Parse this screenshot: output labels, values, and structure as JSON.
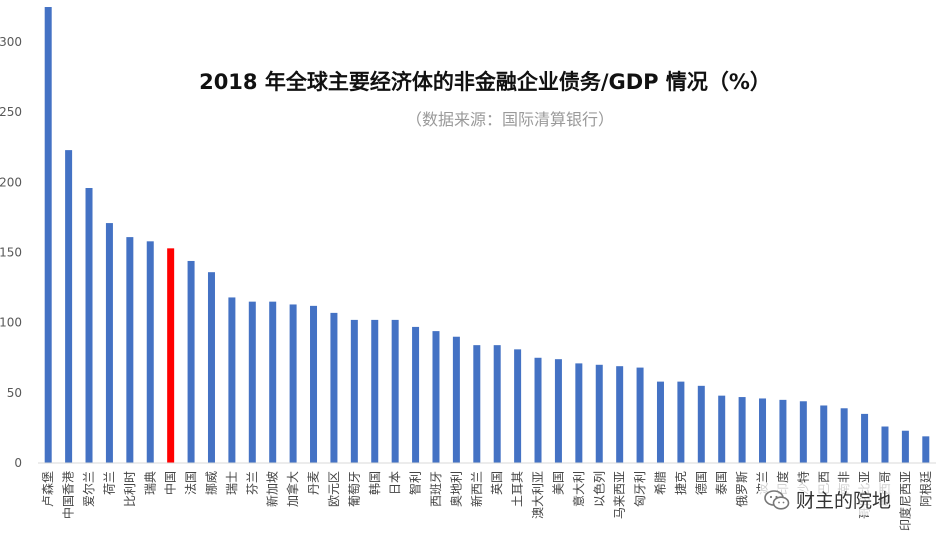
{
  "chart_data": {
    "type": "bar",
    "title": "2018 年全球主要经济体的非金融企业债务/GDP 情况（%）",
    "subtitle": "（数据来源：国际清算银行）",
    "categories": [
      "卢森堡",
      "中国香港",
      "爱尔兰",
      "荷兰",
      "比利时",
      "瑞典",
      "中国",
      "法国",
      "挪威",
      "瑞士",
      "芬兰",
      "新加坡",
      "加拿大",
      "丹麦",
      "欧元区",
      "葡萄牙",
      "韩国",
      "日本",
      "智利",
      "西班牙",
      "奥地利",
      "新西兰",
      "英国",
      "土耳其",
      "澳大利亚",
      "美国",
      "意大利",
      "以色列",
      "马来西亚",
      "匈牙利",
      "希腊",
      "捷克",
      "德国",
      "泰国",
      "俄罗斯",
      "波兰",
      "印度",
      "沙特",
      "巴西",
      "南非",
      "哥伦比亚",
      "墨西哥",
      "印度尼西亚",
      "阿根廷"
    ],
    "values": [
      325,
      223,
      196,
      171,
      161,
      158,
      153,
      144,
      136,
      118,
      115,
      115,
      113,
      112,
      107,
      102,
      102,
      102,
      97,
      94,
      90,
      84,
      84,
      81,
      75,
      74,
      71,
      70,
      69,
      68,
      58,
      58,
      55,
      48,
      47,
      46,
      45,
      44,
      41,
      39,
      35,
      26,
      23,
      19
    ],
    "highlight_index": 6,
    "ylim": [
      0,
      330
    ],
    "yticks": [
      0,
      50,
      100,
      150,
      200,
      250,
      300
    ],
    "bar_color": "#4472C4",
    "highlight_color": "#FF0000",
    "grid": false,
    "legend": "none"
  },
  "watermark": {
    "icon": "wechat-icon",
    "text": "财主的院地"
  }
}
